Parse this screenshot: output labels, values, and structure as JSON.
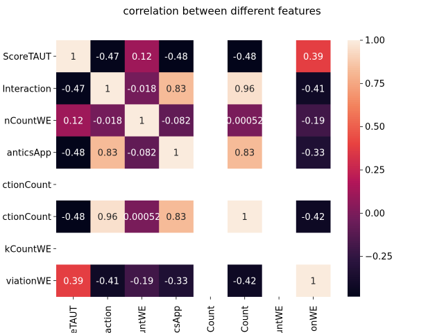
{
  "chart_data": {
    "type": "heatmap",
    "title": "correlation between different features",
    "row_labels": [
      "ScoreTAUT",
      "Interaction",
      "nCountWE",
      "anticsApp",
      "ctionCount",
      "ctionCount",
      "kCountWE",
      "viationWE"
    ],
    "column_labels": [
      "eTAUT",
      "action",
      "untWE",
      "csApp",
      "Count",
      "Count",
      "untWE",
      "onWE"
    ],
    "values": [
      [
        1,
        -0.47,
        0.12,
        -0.48,
        null,
        -0.48,
        null,
        0.39
      ],
      [
        -0.47,
        1,
        -0.018,
        0.83,
        null,
        0.96,
        null,
        -0.41
      ],
      [
        0.12,
        -0.018,
        1,
        -0.082,
        null,
        0.00052,
        null,
        -0.19
      ],
      [
        -0.48,
        0.83,
        -0.082,
        1,
        null,
        0.83,
        null,
        -0.33
      ],
      [
        null,
        null,
        null,
        null,
        null,
        null,
        null,
        null
      ],
      [
        -0.48,
        0.96,
        0.00052,
        0.83,
        null,
        1,
        null,
        -0.42
      ],
      [
        null,
        null,
        null,
        null,
        null,
        null,
        null,
        null
      ],
      [
        0.39,
        -0.41,
        -0.19,
        -0.33,
        null,
        -0.42,
        null,
        1
      ]
    ],
    "annotations": [
      [
        "1",
        "-0.47",
        "0.12",
        "-0.48",
        "",
        "-0.48",
        "",
        "0.39"
      ],
      [
        "-0.47",
        "1",
        "-0.018",
        "0.83",
        "",
        "0.96",
        "",
        "-0.41"
      ],
      [
        "0.12",
        "-0.018",
        "1",
        "-0.082",
        "",
        "0.00052",
        "",
        "-0.19"
      ],
      [
        "-0.48",
        "0.83",
        "-0.082",
        "1",
        "",
        "0.83",
        "",
        "-0.33"
      ],
      [
        "",
        "",
        "",
        "",
        "",
        "",
        "",
        ""
      ],
      [
        "-0.48",
        "0.96",
        "0.00052",
        "0.83",
        "",
        "1",
        "",
        "-0.42"
      ],
      [
        "",
        "",
        "",
        "",
        "",
        "",
        "",
        ""
      ],
      [
        "0.39",
        "-0.41",
        "-0.19",
        "-0.33",
        "",
        "-0.42",
        "",
        "1"
      ]
    ],
    "colorbar": {
      "vmin": -0.48,
      "vmax": 1,
      "ticks": [
        1.0,
        0.75,
        0.5,
        0.25,
        0.0,
        -0.25
      ],
      "tick_labels": [
        "1.00",
        "0.75",
        "0.50",
        "0.25",
        "0.00",
        "−0.25"
      ],
      "colormap": "rocket"
    }
  }
}
